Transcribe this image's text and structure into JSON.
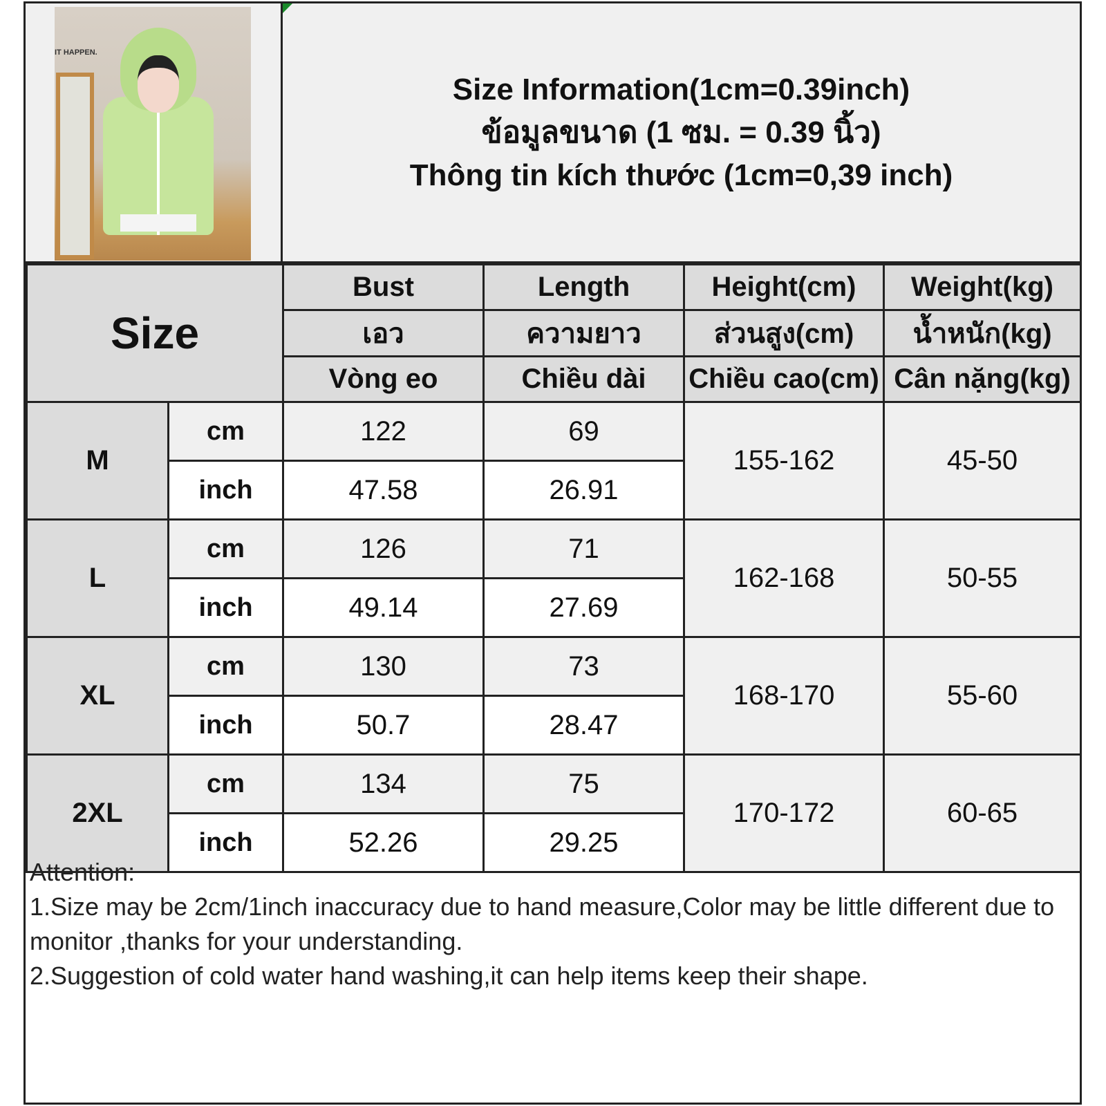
{
  "title": {
    "line_en": "Size Information(1cm=0.39inch)",
    "line_th": "ข้อมูลขนาด (1 ซม. = 0.39 นิ้ว)",
    "line_vi": "Thông tin kích thước (1cm=0,39 inch)"
  },
  "photo": {
    "sign_text": "IT HAPPEN."
  },
  "table": {
    "size_header": "Size",
    "columns": [
      {
        "en": "Bust",
        "th": "เอว",
        "vi": "Vòng eo"
      },
      {
        "en": "Length",
        "th": "ความยาว",
        "vi": "Chiều dài"
      },
      {
        "en": "Height(cm)",
        "th": "ส่วนสูง(cm)",
        "vi": "Chiều cao(cm)"
      },
      {
        "en": "Weight(kg)",
        "th": "น้ำหนัก(kg)",
        "vi": "Cân nặng(kg)"
      }
    ],
    "units": {
      "cm": "cm",
      "inch": "inch"
    },
    "rows": [
      {
        "size": "M",
        "bust_cm": "122",
        "length_cm": "69",
        "bust_inch": "47.58",
        "length_inch": "26.91",
        "height": "155-162",
        "weight": "45-50"
      },
      {
        "size": "L",
        "bust_cm": "126",
        "length_cm": "71",
        "bust_inch": "49.14",
        "length_inch": "27.69",
        "height": "162-168",
        "weight": "50-55"
      },
      {
        "size": "XL",
        "bust_cm": "130",
        "length_cm": "73",
        "bust_inch": "50.7",
        "length_inch": "28.47",
        "height": "168-170",
        "weight": "55-60"
      },
      {
        "size": "2XL",
        "bust_cm": "134",
        "length_cm": "75",
        "bust_inch": "52.26",
        "length_inch": "29.25",
        "height": "170-172",
        "weight": "60-65"
      }
    ]
  },
  "notes": {
    "heading": "Attention:",
    "items": [
      "1.Size may be 2cm/1inch inaccuracy due to hand measure,Color may be little different due to monitor ,thanks for your understanding.",
      "2.Suggestion of cold water hand washing,it can help items keep their shape."
    ]
  }
}
